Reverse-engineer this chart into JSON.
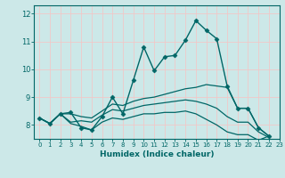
{
  "title": "",
  "xlabel": "Humidex (Indice chaleur)",
  "bg_color": "#cce8e8",
  "grid_color": "#f0c8c8",
  "line_color": "#006666",
  "xlim": [
    -0.5,
    23
  ],
  "ylim": [
    7.5,
    12.3
  ],
  "xticks": [
    0,
    1,
    2,
    3,
    4,
    5,
    6,
    7,
    8,
    9,
    10,
    11,
    12,
    13,
    14,
    15,
    16,
    17,
    18,
    19,
    20,
    21,
    22,
    23
  ],
  "yticks": [
    8,
    9,
    10,
    11,
    12
  ],
  "series": [
    {
      "x": [
        0,
        1,
        2,
        3,
        4,
        5,
        6,
        7,
        8,
        9,
        10,
        11,
        12,
        13,
        14,
        15,
        16,
        17,
        18,
        19,
        20,
        21,
        22
      ],
      "y": [
        8.25,
        8.05,
        8.4,
        8.45,
        7.9,
        7.82,
        8.3,
        9.0,
        8.4,
        9.6,
        10.8,
        9.95,
        10.45,
        10.5,
        11.05,
        11.75,
        11.4,
        11.1,
        9.4,
        8.6,
        8.6,
        7.9,
        7.6
      ],
      "marker": "D",
      "markersize": 2.5,
      "linewidth": 1.0,
      "linestyle": "-"
    },
    {
      "x": [
        0,
        1,
        2,
        3,
        4,
        5,
        6,
        7,
        8,
        9,
        10,
        11,
        12,
        13,
        14,
        15,
        16,
        17,
        18,
        19,
        20,
        21,
        22
      ],
      "y": [
        8.25,
        8.05,
        8.4,
        8.4,
        8.3,
        8.25,
        8.5,
        8.75,
        8.7,
        8.85,
        8.95,
        9.0,
        9.1,
        9.2,
        9.3,
        9.35,
        9.45,
        9.4,
        9.35,
        8.6,
        8.6,
        7.9,
        7.6
      ],
      "marker": null,
      "markersize": 0,
      "linewidth": 0.9,
      "linestyle": "-"
    },
    {
      "x": [
        0,
        1,
        2,
        3,
        4,
        5,
        6,
        7,
        8,
        9,
        10,
        11,
        12,
        13,
        14,
        15,
        16,
        17,
        18,
        19,
        20,
        21,
        22
      ],
      "y": [
        8.25,
        8.05,
        8.4,
        8.1,
        8.15,
        8.1,
        8.35,
        8.55,
        8.5,
        8.6,
        8.7,
        8.75,
        8.8,
        8.85,
        8.9,
        8.85,
        8.75,
        8.6,
        8.3,
        8.1,
        8.1,
        7.75,
        7.55
      ],
      "marker": null,
      "markersize": 0,
      "linewidth": 0.9,
      "linestyle": "-"
    },
    {
      "x": [
        0,
        1,
        2,
        3,
        4,
        5,
        6,
        7,
        8,
        9,
        10,
        11,
        12,
        13,
        14,
        15,
        16,
        17,
        18,
        19,
        20,
        21,
        22
      ],
      "y": [
        8.25,
        8.05,
        8.4,
        8.05,
        7.95,
        7.82,
        8.1,
        8.25,
        8.2,
        8.3,
        8.4,
        8.4,
        8.45,
        8.45,
        8.5,
        8.4,
        8.2,
        8.0,
        7.75,
        7.65,
        7.65,
        7.45,
        7.6
      ],
      "marker": null,
      "markersize": 0,
      "linewidth": 0.9,
      "linestyle": "-"
    }
  ]
}
